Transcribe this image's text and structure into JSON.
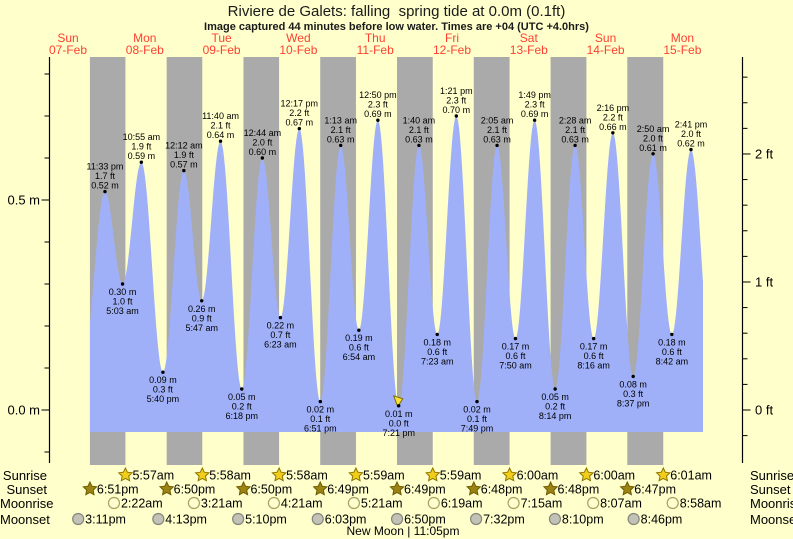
{
  "page": {
    "title": "Riviere de Galets: falling  spring tide at 0.0m (0.1ft)",
    "subtitle": "Image captured 44 minutes before low water. Times are +04 (UTC +4.0hrs)"
  },
  "colors": {
    "background": "#FFFFCC",
    "night_band": "#AAAAAA",
    "tide_fill": "#9FB0F8",
    "day_label_red": "#FF4030",
    "text": "#000000",
    "sunrise_star_fill": "#F2CE1B",
    "sunrise_star_stroke": "#8B7500",
    "sunset_star_fill": "#9C8412",
    "sunset_star_stroke": "#6E5A00",
    "moonrise_disc_fill": "#FFFFD0",
    "moonrise_disc_stroke": "#A8A060",
    "moonset_disc_fill": "#C2C2B6",
    "moonset_disc_stroke": "#85857B",
    "current_marker_fill": "#FFE135",
    "current_marker_stroke": "#7A6A00"
  },
  "x_axis": {
    "days": [
      {
        "weekday": "Sun",
        "date": "07-Feb"
      },
      {
        "weekday": "Mon",
        "date": "08-Feb"
      },
      {
        "weekday": "Tue",
        "date": "09-Feb"
      },
      {
        "weekday": "Wed",
        "date": "10-Feb"
      },
      {
        "weekday": "Thu",
        "date": "11-Feb"
      },
      {
        "weekday": "Fri",
        "date": "12-Feb"
      },
      {
        "weekday": "Sat",
        "date": "13-Feb"
      },
      {
        "weekday": "Sun",
        "date": "14-Feb"
      },
      {
        "weekday": "Mon",
        "date": "15-Feb"
      }
    ]
  },
  "y_axis": {
    "left": {
      "unit": "m",
      "ticks": [
        {
          "label": "0.5 m",
          "value_m": 0.5
        },
        {
          "label": "0.0 m",
          "value_m": 0.0
        }
      ],
      "minor_step_m": 0.1
    },
    "right": {
      "unit": "ft",
      "ticks": [
        {
          "label": "2 ft",
          "value_ft": 2
        },
        {
          "label": "1 ft",
          "value_ft": 1
        },
        {
          "label": "0 ft",
          "value_ft": 0
        }
      ],
      "minor_step_ft": 0.2
    }
  },
  "chart_data": {
    "type": "area",
    "description": "tide height curve, alternating high/low tides over 9 days",
    "ylim_m": [
      -0.13,
      0.84
    ],
    "tides": [
      {
        "kind": "high",
        "day_index": 0,
        "time": "11:33 pm",
        "height_m": 0.52,
        "m_label": "0.52 m",
        "ft_label": "1.7 ft"
      },
      {
        "kind": "low",
        "day_index": 1,
        "time": "5:03 am",
        "height_m": 0.3,
        "m_label": "0.30 m",
        "ft_label": "1.0 ft"
      },
      {
        "kind": "high",
        "day_index": 1,
        "time": "10:55 am",
        "height_m": 0.59,
        "m_label": "0.59 m",
        "ft_label": "1.9 ft"
      },
      {
        "kind": "low",
        "day_index": 1,
        "time": "5:40 pm",
        "height_m": 0.09,
        "m_label": "0.09 m",
        "ft_label": "0.3 ft"
      },
      {
        "kind": "high",
        "day_index": 2,
        "time": "12:12 am",
        "height_m": 0.57,
        "m_label": "0.57 m",
        "ft_label": "1.9 ft"
      },
      {
        "kind": "low",
        "day_index": 2,
        "time": "5:47 am",
        "height_m": 0.26,
        "m_label": "0.26 m",
        "ft_label": "0.9 ft"
      },
      {
        "kind": "high",
        "day_index": 2,
        "time": "11:40 am",
        "height_m": 0.64,
        "m_label": "0.64 m",
        "ft_label": "2.1 ft"
      },
      {
        "kind": "low",
        "day_index": 2,
        "time": "6:18 pm",
        "height_m": 0.05,
        "m_label": "0.05 m",
        "ft_label": "0.2 ft"
      },
      {
        "kind": "high",
        "day_index": 3,
        "time": "12:44 am",
        "height_m": 0.6,
        "m_label": "0.60 m",
        "ft_label": "2.0 ft"
      },
      {
        "kind": "low",
        "day_index": 3,
        "time": "6:23 am",
        "height_m": 0.22,
        "m_label": "0.22 m",
        "ft_label": "0.7 ft"
      },
      {
        "kind": "high",
        "day_index": 3,
        "time": "12:17 pm",
        "height_m": 0.67,
        "m_label": "0.67 m",
        "ft_label": "2.2 ft"
      },
      {
        "kind": "low",
        "day_index": 3,
        "time": "6:51 pm",
        "height_m": 0.02,
        "m_label": "0.02 m",
        "ft_label": "0.1 ft"
      },
      {
        "kind": "high",
        "day_index": 4,
        "time": "1:13 am",
        "height_m": 0.63,
        "m_label": "0.63 m",
        "ft_label": "2.1 ft"
      },
      {
        "kind": "low",
        "day_index": 4,
        "time": "6:54 am",
        "height_m": 0.19,
        "m_label": "0.19 m",
        "ft_label": "0.6 ft"
      },
      {
        "kind": "high",
        "day_index": 4,
        "time": "12:50 pm",
        "height_m": 0.69,
        "m_label": "0.69 m",
        "ft_label": "2.3 ft"
      },
      {
        "kind": "low",
        "day_index": 4,
        "time": "7:21 pm",
        "height_m": 0.01,
        "m_label": "0.01 m",
        "ft_label": "0.0 ft",
        "current_marker": true
      },
      {
        "kind": "high",
        "day_index": 5,
        "time": "1:40 am",
        "height_m": 0.63,
        "m_label": "0.63 m",
        "ft_label": "2.1 ft"
      },
      {
        "kind": "low",
        "day_index": 5,
        "time": "7:23 am",
        "height_m": 0.18,
        "m_label": "0.18 m",
        "ft_label": "0.6 ft"
      },
      {
        "kind": "high",
        "day_index": 5,
        "time": "1:21 pm",
        "height_m": 0.7,
        "m_label": "0.70 m",
        "ft_label": "2.3 ft"
      },
      {
        "kind": "low",
        "day_index": 5,
        "time": "7:49 pm",
        "height_m": 0.02,
        "m_label": "0.02 m",
        "ft_label": "0.1 ft"
      },
      {
        "kind": "high",
        "day_index": 6,
        "time": "2:05 am",
        "height_m": 0.63,
        "m_label": "0.63 m",
        "ft_label": "2.1 ft"
      },
      {
        "kind": "low",
        "day_index": 6,
        "time": "7:50 am",
        "height_m": 0.17,
        "m_label": "0.17 m",
        "ft_label": "0.6 ft"
      },
      {
        "kind": "high",
        "day_index": 6,
        "time": "1:49 pm",
        "height_m": 0.69,
        "m_label": "0.69 m",
        "ft_label": "2.3 ft"
      },
      {
        "kind": "low",
        "day_index": 6,
        "time": "8:14 pm",
        "height_m": 0.05,
        "m_label": "0.05 m",
        "ft_label": "0.2 ft"
      },
      {
        "kind": "high",
        "day_index": 7,
        "time": "2:28 am",
        "height_m": 0.63,
        "m_label": "0.63 m",
        "ft_label": "2.1 ft"
      },
      {
        "kind": "low",
        "day_index": 7,
        "time": "8:16 am",
        "height_m": 0.17,
        "m_label": "0.17 m",
        "ft_label": "0.6 ft"
      },
      {
        "kind": "high",
        "day_index": 7,
        "time": "2:16 pm",
        "height_m": 0.66,
        "m_label": "0.66 m",
        "ft_label": "2.2 ft"
      },
      {
        "kind": "low",
        "day_index": 7,
        "time": "8:37 pm",
        "height_m": 0.08,
        "m_label": "0.08 m",
        "ft_label": "0.3 ft"
      },
      {
        "kind": "high",
        "day_index": 8,
        "time": "2:50 am",
        "height_m": 0.61,
        "m_label": "0.61 m",
        "ft_label": "2.0 ft"
      },
      {
        "kind": "low",
        "day_index": 8,
        "time": "8:42 am",
        "height_m": 0.18,
        "m_label": "0.18 m",
        "ft_label": "0.6 ft"
      },
      {
        "kind": "high",
        "day_index": 8,
        "time": "2:41 pm",
        "height_m": 0.62,
        "m_label": "0.62 m",
        "ft_label": "2.0 ft"
      }
    ]
  },
  "almanac": {
    "rows": [
      {
        "label": "Sunrise",
        "icon": "sunrise-star-icon",
        "entries": [
          {
            "day_index": 1,
            "time": "5:57am"
          },
          {
            "day_index": 2,
            "time": "5:58am"
          },
          {
            "day_index": 3,
            "time": "5:58am"
          },
          {
            "day_index": 4,
            "time": "5:59am"
          },
          {
            "day_index": 5,
            "time": "5:59am"
          },
          {
            "day_index": 6,
            "time": "6:00am"
          },
          {
            "day_index": 7,
            "time": "6:00am"
          },
          {
            "day_index": 8,
            "time": "6:01am"
          }
        ]
      },
      {
        "label": "Sunset",
        "icon": "sunset-star-icon",
        "entries": [
          {
            "day_index": 0,
            "time": "6:51pm"
          },
          {
            "day_index": 1,
            "time": "6:50pm"
          },
          {
            "day_index": 2,
            "time": "6:50pm"
          },
          {
            "day_index": 3,
            "time": "6:49pm"
          },
          {
            "day_index": 4,
            "time": "6:49pm"
          },
          {
            "day_index": 5,
            "time": "6:48pm"
          },
          {
            "day_index": 6,
            "time": "6:48pm"
          },
          {
            "day_index": 7,
            "time": "6:47pm"
          }
        ]
      },
      {
        "label": "Moonrise",
        "icon": "moonrise-disc-icon",
        "entries": [
          {
            "day_index": 1,
            "time": "2:22am"
          },
          {
            "day_index": 2,
            "time": "3:21am"
          },
          {
            "day_index": 3,
            "time": "4:21am"
          },
          {
            "day_index": 4,
            "time": "5:21am"
          },
          {
            "day_index": 5,
            "time": "6:19am"
          },
          {
            "day_index": 6,
            "time": "7:15am"
          },
          {
            "day_index": 7,
            "time": "8:07am"
          },
          {
            "day_index": 8,
            "time": "8:58am"
          }
        ]
      },
      {
        "label": "Moonset",
        "icon": "moonset-disc-icon",
        "entries": [
          {
            "day_index": 0,
            "time": "3:11pm"
          },
          {
            "day_index": 1,
            "time": "4:13pm"
          },
          {
            "day_index": 2,
            "time": "5:10pm"
          },
          {
            "day_index": 3,
            "time": "6:03pm"
          },
          {
            "day_index": 4,
            "time": "6:50pm"
          },
          {
            "day_index": 5,
            "time": "7:32pm"
          },
          {
            "day_index": 6,
            "time": "8:10pm"
          },
          {
            "day_index": 7,
            "time": "8:46pm"
          }
        ]
      }
    ],
    "footer": "New Moon | 11:05pm"
  }
}
